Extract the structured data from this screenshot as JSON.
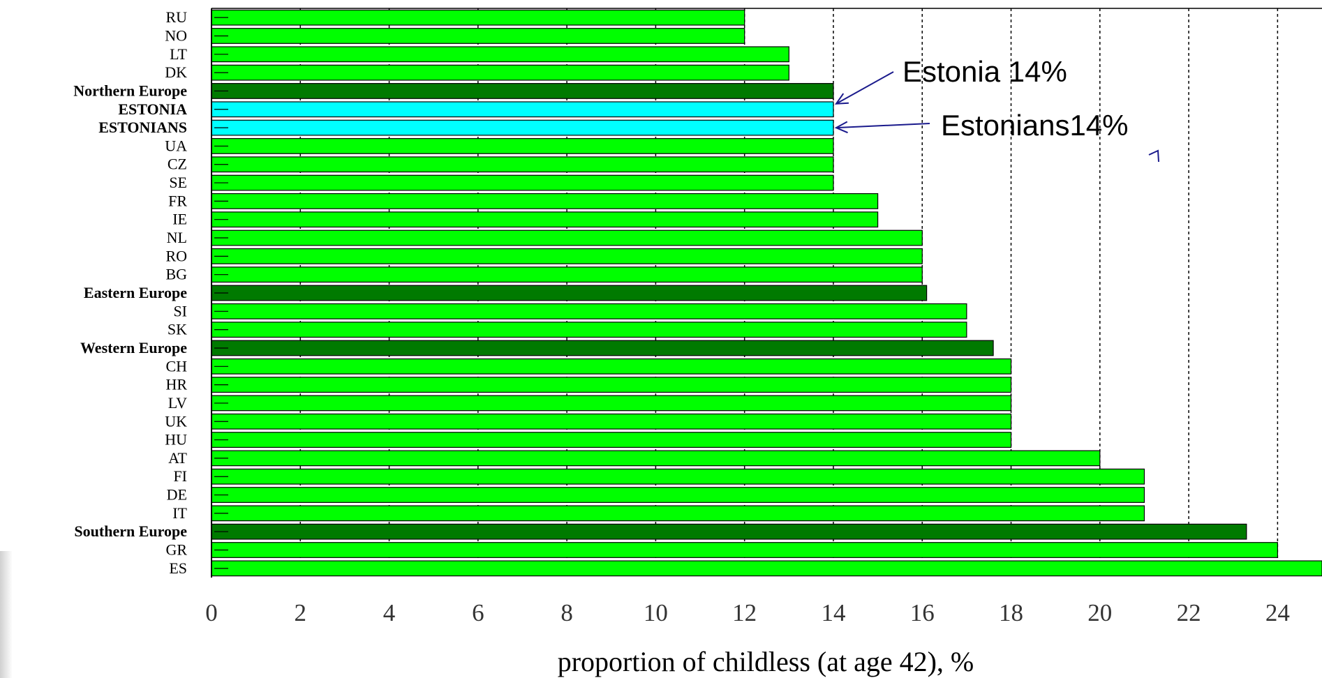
{
  "chart_data": {
    "type": "bar",
    "orientation": "horizontal",
    "xlabel": "proportion of childless (at age 42), %",
    "xlim": [
      0,
      25
    ],
    "xticks": [
      0,
      2,
      4,
      6,
      8,
      10,
      12,
      14,
      16,
      18,
      20,
      22,
      24
    ],
    "grid": "vertical dashed",
    "categories": [
      "RU",
      "NO",
      "LT",
      "DK",
      "Northern Europe",
      "ESTONIA",
      "ESTONIANS",
      "UA",
      "CZ",
      "SE",
      "FR",
      "IE",
      "NL",
      "RO",
      "BG",
      "Eastern Europe",
      "SI",
      "SK",
      "Western Europe",
      "CH",
      "HR",
      "LV",
      "UK",
      "HU",
      "AT",
      "FI",
      "DE",
      "IT",
      "Southern Europe",
      "GR",
      "ES"
    ],
    "values": [
      12,
      12,
      13,
      13,
      14,
      14,
      14,
      14,
      14,
      14,
      15,
      15,
      16,
      16,
      16,
      16.1,
      17,
      17,
      17.6,
      18,
      18,
      18,
      18,
      18,
      20,
      21,
      21,
      21,
      23.3,
      24,
      25
    ],
    "kinds": [
      "country",
      "country",
      "country",
      "country",
      "region",
      "highlight",
      "highlight",
      "country",
      "country",
      "country",
      "country",
      "country",
      "country",
      "country",
      "country",
      "region",
      "country",
      "country",
      "region",
      "country",
      "country",
      "country",
      "country",
      "country",
      "country",
      "country",
      "country",
      "country",
      "region",
      "country",
      "country"
    ],
    "colors": {
      "country": "#00ff00",
      "region": "#007a00",
      "highlight": "#00ffff",
      "annotation": "#1a1a8c"
    },
    "annotations": [
      {
        "text": "Estonia 14%",
        "target_category": "ESTONIA"
      },
      {
        "text": "Estonians14%",
        "target_category": "ESTONIANS"
      }
    ]
  }
}
